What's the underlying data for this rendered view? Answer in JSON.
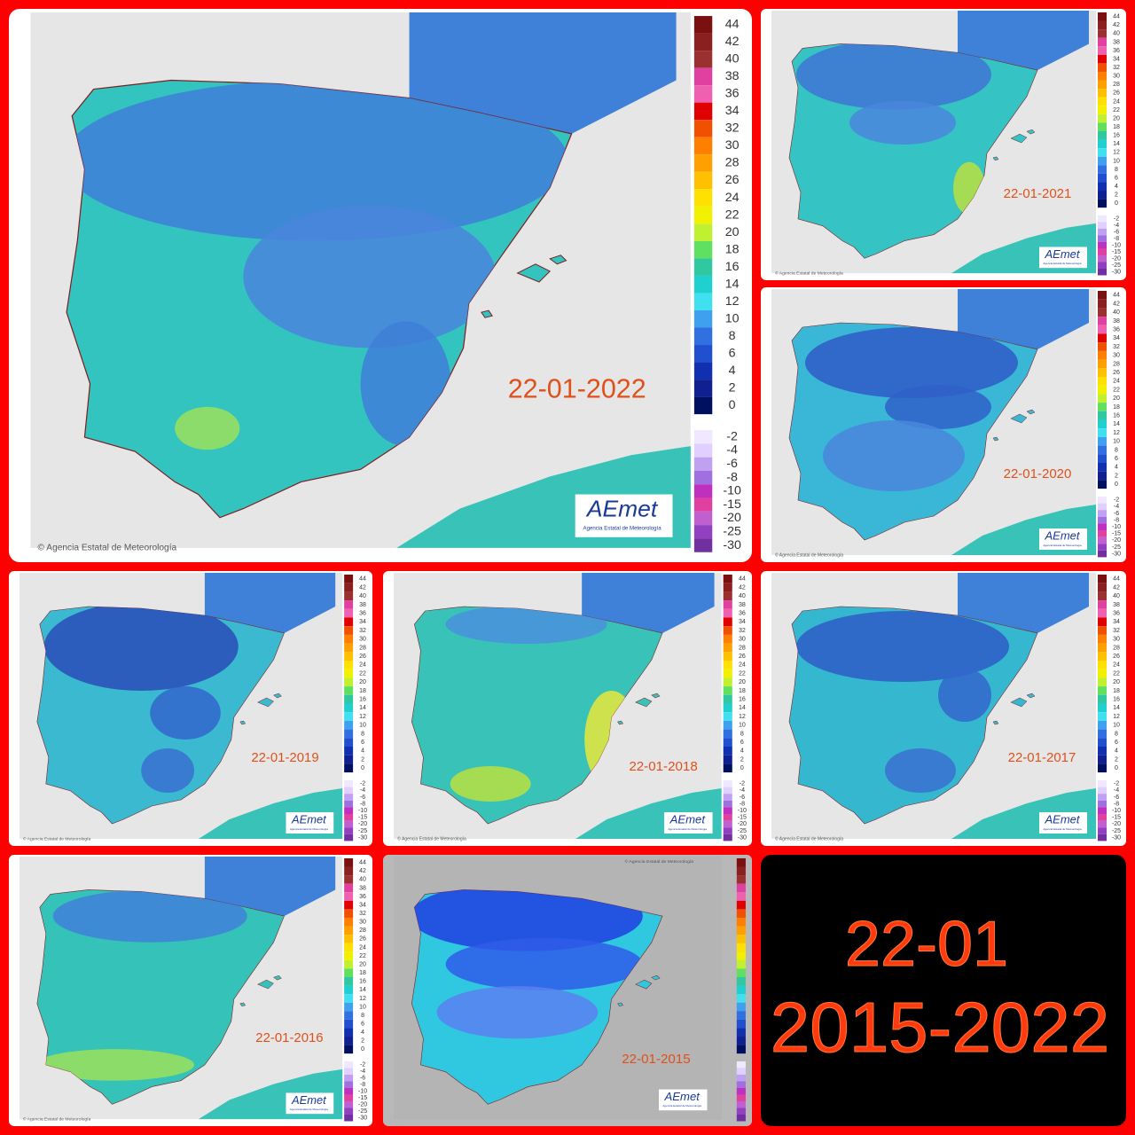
{
  "panels": [
    {
      "date": "22-01-2022"
    },
    {
      "date": "22-01-2021"
    },
    {
      "date": "22-01-2020"
    },
    {
      "date": "22-01-2019"
    },
    {
      "date": "22-01-2018"
    },
    {
      "date": "22-01-2017"
    },
    {
      "date": "22-01-2016"
    },
    {
      "date": "22-01-2015"
    }
  ],
  "credit": "© Agencia Estatal de Meteorología",
  "logo": {
    "name": "AEmet",
    "subtitle": "Agencia Estatal de Meteorología"
  },
  "legend": {
    "labels": [
      "44",
      "42",
      "40",
      "38",
      "36",
      "34",
      "32",
      "30",
      "28",
      "26",
      "24",
      "22",
      "20",
      "18",
      "16",
      "14",
      "12",
      "10",
      "8",
      "6",
      "4",
      "2",
      "0",
      "-2",
      "-4",
      "-6",
      "-8",
      "-10",
      "-15",
      "-20",
      "-25",
      "-30"
    ]
  },
  "summary": {
    "day": "22-01",
    "range": "2015-2022"
  }
}
